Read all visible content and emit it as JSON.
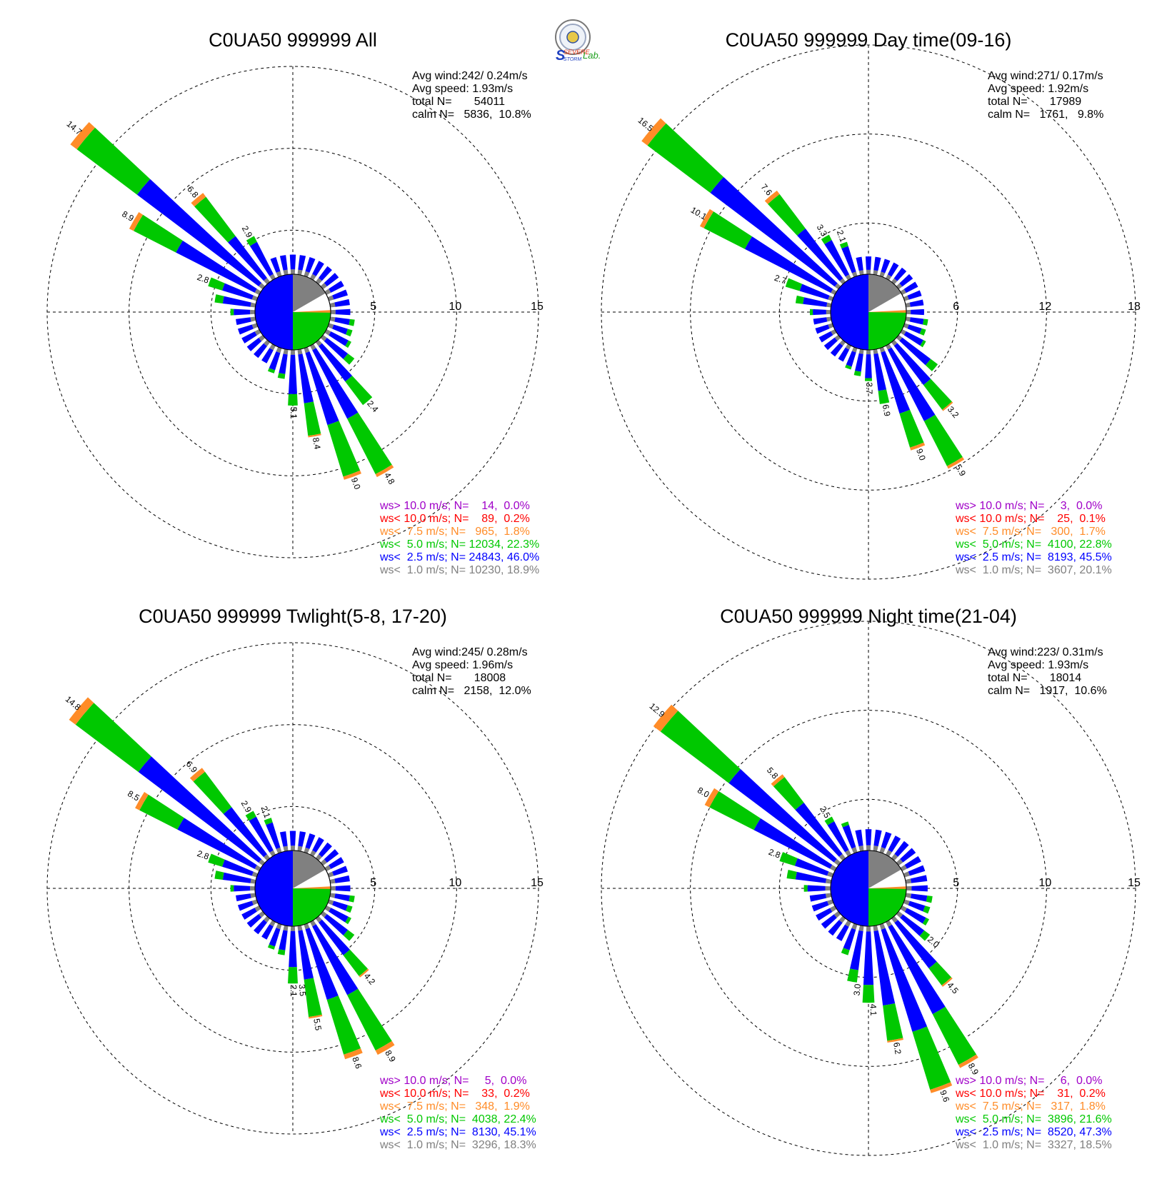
{
  "logo": {
    "name": "Severe Storm Lab. logo",
    "text_severe": "SEVERE",
    "text_storm": "STORM",
    "text_lab": "Lab."
  },
  "legend_colors": {
    "gt10": "#a000c8",
    "lt10": "#ff0000",
    "lt7_5": "#ff8c28",
    "lt5": "#00c800",
    "lt2_5": "#0000ff",
    "lt1": "#808080"
  },
  "chart_data": [
    {
      "type": "wind-rose",
      "title": "C0UA50 999999 All",
      "rings": [
        "5",
        "10",
        "15"
      ],
      "rmax": 15,
      "stats": [
        "Avg wind:242/ 0.24m/s",
        "Avg speed: 1.93m/s",
        "total N=       54011",
        "calm N=   5836,  10.8%"
      ],
      "legend": [
        "ws> 10.0 m/s; N=    14,  0.0%",
        "ws< 10.0 m/s; N=    89,  0.2%",
        "ws<  7.5 m/s; N=   965,  1.8%",
        "ws<  5.0 m/s; N= 12034, 22.3%",
        "ws<  2.5 m/s; N= 24843, 46.0%",
        "ws<  1.0 m/s; N= 10230, 18.9%"
      ],
      "center": {
        "gray_deg": [
          0,
          60
        ],
        "green_deg": [
          90,
          180
        ],
        "blue_deg": [
          180,
          360
        ]
      },
      "directions": [
        0,
        10,
        20,
        30,
        40,
        50,
        60,
        70,
        80,
        90,
        100,
        110,
        120,
        130,
        140,
        150,
        160,
        170,
        180,
        190,
        200,
        210,
        220,
        230,
        240,
        250,
        260,
        270,
        280,
        290,
        300,
        310,
        320,
        330,
        340,
        350
      ],
      "petals": [
        [
          0.3,
          0.9,
          0,
          0
        ],
        [
          0.3,
          0.9,
          0,
          0
        ],
        [
          0.3,
          0.9,
          0,
          0
        ],
        [
          0.3,
          0.9,
          0,
          0
        ],
        [
          0.3,
          0.9,
          0,
          0
        ],
        [
          0.3,
          0.9,
          0,
          0
        ],
        [
          0.3,
          0.9,
          0,
          0
        ],
        [
          0.3,
          0.9,
          0,
          0
        ],
        [
          0.3,
          0.9,
          0,
          0
        ],
        [
          0.3,
          0.9,
          0,
          0
        ],
        [
          0.3,
          0.9,
          0.3,
          0
        ],
        [
          0.3,
          0.9,
          0.3,
          0
        ],
        [
          0.3,
          1.2,
          0.2,
          0
        ],
        [
          0.3,
          1.6,
          0.5,
          0
        ],
        [
          0.3,
          2.7,
          1.8,
          0
        ],
        [
          0.3,
          4.7,
          3.8,
          0.2
        ],
        [
          0.3,
          4.6,
          3.3,
          0.2
        ],
        [
          0.3,
          3.0,
          2.0,
          0.1
        ],
        [
          0.3,
          2.4,
          0.7,
          0
        ],
        [
          0.3,
          1.2,
          0.3,
          0
        ],
        [
          0.3,
          1.1,
          0.2,
          0
        ],
        [
          0.3,
          0.9,
          0,
          0
        ],
        [
          0.3,
          0.9,
          0,
          0
        ],
        [
          0.3,
          0.9,
          0,
          0
        ],
        [
          0.3,
          0.9,
          0,
          0
        ],
        [
          0.3,
          0.9,
          0,
          0
        ],
        [
          0.3,
          0.9,
          0,
          0
        ],
        [
          0.3,
          1.0,
          0.2,
          0
        ],
        [
          0.3,
          1.7,
          0.5,
          0
        ],
        [
          0.3,
          1.9,
          0.9,
          0
        ],
        [
          0.3,
          5.4,
          2.9,
          0.3
        ],
        [
          0.3,
          9.3,
          4.6,
          0.5
        ],
        [
          0.3,
          3.2,
          3.0,
          0.3
        ],
        [
          0.3,
          2.2,
          0.4,
          0
        ],
        [
          0.3,
          0.9,
          0,
          0
        ],
        [
          0.3,
          0.9,
          0,
          0
        ]
      ],
      "labels": [
        {
          "dir": 140,
          "text": "2.4"
        },
        {
          "dir": 150,
          "text": "4.8"
        },
        {
          "dir": 160,
          "text": "9.0"
        },
        {
          "dir": 170,
          "text": "8.4"
        },
        {
          "dir": 180,
          "text": "3.1"
        },
        {
          "dir": 180,
          "text": "5.1"
        },
        {
          "dir": 300,
          "text": "8.9"
        },
        {
          "dir": 310,
          "text": "14.7"
        },
        {
          "dir": 320,
          "text": "6.8"
        },
        {
          "dir": 330,
          "text": "2.9"
        },
        {
          "dir": 290,
          "text": "2.8"
        }
      ]
    },
    {
      "type": "wind-rose",
      "title": "C0UA50 999999 Day time(09-16)",
      "rings": [
        "6",
        "12",
        "18"
      ],
      "rmax": 18,
      "stats": [
        "Avg wind:271/ 0.17m/s",
        "Avg speed: 1.92m/s",
        "total N=       17989",
        "calm N=   1761,   9.8%"
      ],
      "legend": [
        "ws> 10.0 m/s; N=     3,  0.0%",
        "ws< 10.0 m/s; N=    25,  0.1%",
        "ws<  7.5 m/s; N=   300,  1.7%",
        "ws<  5.0 m/s; N=  4100, 22.8%",
        "ws<  2.5 m/s; N=  8193, 45.5%",
        "ws<  1.0 m/s; N=  3607, 20.1%"
      ],
      "center": {
        "gray_deg": [
          0,
          60
        ],
        "green_deg": [
          90,
          180
        ],
        "blue_deg": [
          180,
          360
        ]
      },
      "directions": [
        0,
        10,
        20,
        30,
        40,
        50,
        60,
        70,
        80,
        90,
        100,
        110,
        120,
        130,
        140,
        150,
        160,
        170,
        180,
        190,
        200,
        210,
        220,
        230,
        240,
        250,
        260,
        270,
        280,
        290,
        300,
        310,
        320,
        330,
        340,
        350
      ],
      "petals": [
        [
          0.3,
          0.9,
          0,
          0
        ],
        [
          0.3,
          0.9,
          0,
          0
        ],
        [
          0.3,
          0.9,
          0,
          0
        ],
        [
          0.3,
          0.9,
          0,
          0
        ],
        [
          0.3,
          0.9,
          0,
          0
        ],
        [
          0.3,
          0.9,
          0,
          0
        ],
        [
          0.3,
          0.9,
          0,
          0
        ],
        [
          0.3,
          0.9,
          0,
          0
        ],
        [
          0.3,
          0.9,
          0,
          0
        ],
        [
          0.3,
          0.9,
          0,
          0
        ],
        [
          0.3,
          0.9,
          0.3,
          0
        ],
        [
          0.3,
          0.9,
          0.3,
          0
        ],
        [
          0.3,
          1.3,
          0.2,
          0
        ],
        [
          0.3,
          2.4,
          0.6,
          0
        ],
        [
          0.3,
          3.3,
          2.1,
          0.1
        ],
        [
          0.3,
          5.4,
          3.4,
          0.2
        ],
        [
          0.3,
          4.3,
          2.4,
          0.2
        ],
        [
          0.3,
          2.5,
          0.9,
          0
        ],
        [
          0.3,
          1.6,
          0.2,
          0
        ],
        [
          0.3,
          1.2,
          0.3,
          0
        ],
        [
          0.3,
          1.0,
          0.2,
          0
        ],
        [
          0.3,
          0.9,
          0,
          0
        ],
        [
          0.3,
          0.9,
          0,
          0
        ],
        [
          0.3,
          0.9,
          0,
          0
        ],
        [
          0.3,
          0.9,
          0,
          0
        ],
        [
          0.3,
          0.9,
          0,
          0
        ],
        [
          0.3,
          0.9,
          0,
          0
        ],
        [
          0.3,
          0.9,
          0.2,
          0
        ],
        [
          0.3,
          1.6,
          0.5,
          0
        ],
        [
          0.3,
          2.0,
          1.0,
          0
        ],
        [
          0.3,
          6.5,
          3.1,
          0.3
        ],
        [
          0.3,
          10.5,
          5.3,
          0.5
        ],
        [
          0.3,
          4.2,
          2.9,
          0.3
        ],
        [
          0.3,
          2.6,
          0.4,
          0
        ],
        [
          0.3,
          1.8,
          0.3,
          0
        ],
        [
          0.3,
          0.9,
          0,
          0
        ]
      ],
      "labels": [
        {
          "dir": 140,
          "text": "3.2"
        },
        {
          "dir": 150,
          "text": "5.9"
        },
        {
          "dir": 160,
          "text": "9.0"
        },
        {
          "dir": 170,
          "text": "6.9"
        },
        {
          "dir": 180,
          "text": "3.7"
        },
        {
          "dir": 300,
          "text": "10.1"
        },
        {
          "dir": 310,
          "text": "16.5"
        },
        {
          "dir": 320,
          "text": "7.6"
        },
        {
          "dir": 330,
          "text": "3.3"
        },
        {
          "dir": 340,
          "text": "2.1"
        },
        {
          "dir": 290,
          "text": "2.7"
        }
      ]
    },
    {
      "type": "wind-rose",
      "title": "C0UA50 999999 Twlight(5-8, 17-20)",
      "rings": [
        "5",
        "10",
        "15"
      ],
      "rmax": 15,
      "stats": [
        "Avg wind:245/ 0.28m/s",
        "Avg speed: 1.96m/s",
        "total N=       18008",
        "calm N=   2158,  12.0%"
      ],
      "legend": [
        "ws> 10.0 m/s; N=     5,  0.0%",
        "ws< 10.0 m/s; N=    33,  0.2%",
        "ws<  7.5 m/s; N=   348,  1.9%",
        "ws<  5.0 m/s; N=  4038, 22.4%",
        "ws<  2.5 m/s; N=  8130, 45.1%",
        "ws<  1.0 m/s; N=  3296, 18.3%"
      ],
      "center": {
        "gray_deg": [
          0,
          60
        ],
        "green_deg": [
          90,
          180
        ],
        "blue_deg": [
          180,
          360
        ]
      },
      "directions": [
        0,
        10,
        20,
        30,
        40,
        50,
        60,
        70,
        80,
        90,
        100,
        110,
        120,
        130,
        140,
        150,
        160,
        170,
        180,
        190,
        200,
        210,
        220,
        230,
        240,
        250,
        260,
        270,
        280,
        290,
        300,
        310,
        320,
        330,
        340,
        350
      ],
      "petals": [
        [
          0.3,
          0.9,
          0,
          0
        ],
        [
          0.3,
          0.9,
          0,
          0
        ],
        [
          0.3,
          0.9,
          0,
          0
        ],
        [
          0.3,
          0.9,
          0,
          0
        ],
        [
          0.3,
          0.9,
          0,
          0
        ],
        [
          0.3,
          0.9,
          0,
          0
        ],
        [
          0.3,
          0.9,
          0,
          0
        ],
        [
          0.3,
          0.9,
          0,
          0
        ],
        [
          0.3,
          0.9,
          0,
          0
        ],
        [
          0.3,
          0.9,
          0,
          0
        ],
        [
          0.3,
          0.9,
          0.3,
          0
        ],
        [
          0.3,
          0.9,
          0.3,
          0
        ],
        [
          0.3,
          1.2,
          0.2,
          0
        ],
        [
          0.3,
          1.6,
          0.5,
          0
        ],
        [
          0.3,
          2.5,
          1.6,
          0.1
        ],
        [
          0.3,
          4.7,
          3.8,
          0.3
        ],
        [
          0.3,
          4.5,
          3.5,
          0.3
        ],
        [
          0.3,
          3.0,
          2.3,
          0.1
        ],
        [
          0.3,
          2.2,
          1.0,
          0
        ],
        [
          0.3,
          1.2,
          0.3,
          0
        ],
        [
          0.3,
          1.1,
          0.2,
          0
        ],
        [
          0.3,
          0.9,
          0,
          0
        ],
        [
          0.3,
          0.9,
          0,
          0
        ],
        [
          0.3,
          0.9,
          0,
          0
        ],
        [
          0.3,
          0.9,
          0,
          0
        ],
        [
          0.3,
          0.9,
          0,
          0
        ],
        [
          0.3,
          0.9,
          0,
          0
        ],
        [
          0.3,
          1.0,
          0.2,
          0
        ],
        [
          0.3,
          1.7,
          0.5,
          0
        ],
        [
          0.3,
          1.9,
          0.9,
          0
        ],
        [
          0.3,
          5.3,
          2.6,
          0.3
        ],
        [
          0.3,
          9.2,
          4.8,
          0.5
        ],
        [
          0.3,
          3.6,
          2.7,
          0.3
        ],
        [
          0.3,
          2.3,
          0.4,
          0
        ],
        [
          0.3,
          1.6,
          0.3,
          0
        ],
        [
          0.3,
          0.9,
          0,
          0
        ]
      ],
      "labels": [
        {
          "dir": 140,
          "text": "4.2"
        },
        {
          "dir": 150,
          "text": "8.9"
        },
        {
          "dir": 160,
          "text": "8.6"
        },
        {
          "dir": 170,
          "text": "5.5"
        },
        {
          "dir": 175,
          "text": "3.5"
        },
        {
          "dir": 180,
          "text": "2.1"
        },
        {
          "dir": 300,
          "text": "8.5"
        },
        {
          "dir": 310,
          "text": "14.8"
        },
        {
          "dir": 320,
          "text": "6.9"
        },
        {
          "dir": 330,
          "text": "2.9"
        },
        {
          "dir": 340,
          "text": "2.1"
        },
        {
          "dir": 290,
          "text": "2.8"
        }
      ]
    },
    {
      "type": "wind-rose",
      "title": "C0UA50 999999 Night time(21-04)",
      "rings": [
        "5",
        "10",
        "15"
      ],
      "rmax": 15,
      "stats": [
        "Avg wind:223/ 0.31m/s",
        "Avg speed: 1.93m/s",
        "total N=       18014",
        "calm N=   1917,  10.6%"
      ],
      "legend": [
        "ws> 10.0 m/s; N=     6,  0.0%",
        "ws< 10.0 m/s; N=    31,  0.2%",
        "ws<  7.5 m/s; N=   317,  1.8%",
        "ws<  5.0 m/s; N=  3896, 21.6%",
        "ws<  2.5 m/s; N=  8520, 47.3%",
        "ws<  1.0 m/s; N=  3327, 18.5%"
      ],
      "center": {
        "gray_deg": [
          0,
          60
        ],
        "green_deg": [
          90,
          180
        ],
        "blue_deg": [
          180,
          360
        ]
      },
      "directions": [
        0,
        10,
        20,
        30,
        40,
        50,
        60,
        70,
        80,
        90,
        100,
        110,
        120,
        130,
        140,
        150,
        160,
        170,
        180,
        190,
        200,
        210,
        220,
        230,
        240,
        250,
        260,
        270,
        280,
        290,
        300,
        310,
        320,
        330,
        340,
        350
      ],
      "petals": [
        [
          0.3,
          0.9,
          0,
          0
        ],
        [
          0.3,
          0.9,
          0,
          0
        ],
        [
          0.3,
          0.9,
          0,
          0
        ],
        [
          0.3,
          0.9,
          0,
          0
        ],
        [
          0.3,
          0.9,
          0,
          0
        ],
        [
          0.3,
          0.9,
          0,
          0
        ],
        [
          0.3,
          0.9,
          0,
          0
        ],
        [
          0.3,
          0.9,
          0,
          0
        ],
        [
          0.3,
          0.9,
          0,
          0
        ],
        [
          0.3,
          0.9,
          0,
          0
        ],
        [
          0.3,
          0.9,
          0.3,
          0
        ],
        [
          0.3,
          0.9,
          0.3,
          0
        ],
        [
          0.3,
          1.2,
          0.2,
          0
        ],
        [
          0.3,
          1.5,
          0.4,
          0
        ],
        [
          0.3,
          3.2,
          1.2,
          0.1
        ],
        [
          0.3,
          5.5,
          3.2,
          0.2
        ],
        [
          0.3,
          6.0,
          3.4,
          0.2
        ],
        [
          0.3,
          4.2,
          2.0,
          0.1
        ],
        [
          0.3,
          3.0,
          1.0,
          0
        ],
        [
          0.3,
          2.2,
          0.7,
          0
        ],
        [
          0.3,
          1.2,
          0.3,
          0
        ],
        [
          0.3,
          0.9,
          0,
          0
        ],
        [
          0.3,
          0.9,
          0,
          0
        ],
        [
          0.3,
          0.9,
          0,
          0
        ],
        [
          0.3,
          0.9,
          0,
          0
        ],
        [
          0.3,
          0.9,
          0,
          0
        ],
        [
          0.3,
          0.9,
          0,
          0
        ],
        [
          0.3,
          1.0,
          0.2,
          0
        ],
        [
          0.3,
          1.7,
          0.5,
          0
        ],
        [
          0.3,
          1.9,
          0.9,
          0
        ],
        [
          0.3,
          4.8,
          2.8,
          0.3
        ],
        [
          0.3,
          7.4,
          4.8,
          0.5
        ],
        [
          0.3,
          3.6,
          1.8,
          0.2
        ],
        [
          0.3,
          1.8,
          0.3,
          0
        ],
        [
          0.3,
          1.3,
          0.2,
          0
        ],
        [
          0.3,
          0.9,
          0,
          0
        ]
      ],
      "labels": [
        {
          "dir": 130,
          "text": "2.0"
        },
        {
          "dir": 140,
          "text": "4.5"
        },
        {
          "dir": 150,
          "text": "8.9"
        },
        {
          "dir": 160,
          "text": "9.6"
        },
        {
          "dir": 170,
          "text": "6.2"
        },
        {
          "dir": 178,
          "text": "4.1"
        },
        {
          "dir": 186,
          "text": "3.0"
        },
        {
          "dir": 300,
          "text": "8.0"
        },
        {
          "dir": 310,
          "text": "12.9"
        },
        {
          "dir": 320,
          "text": "5.8"
        },
        {
          "dir": 330,
          "text": "2.5"
        },
        {
          "dir": 290,
          "text": "2.8"
        }
      ]
    }
  ]
}
